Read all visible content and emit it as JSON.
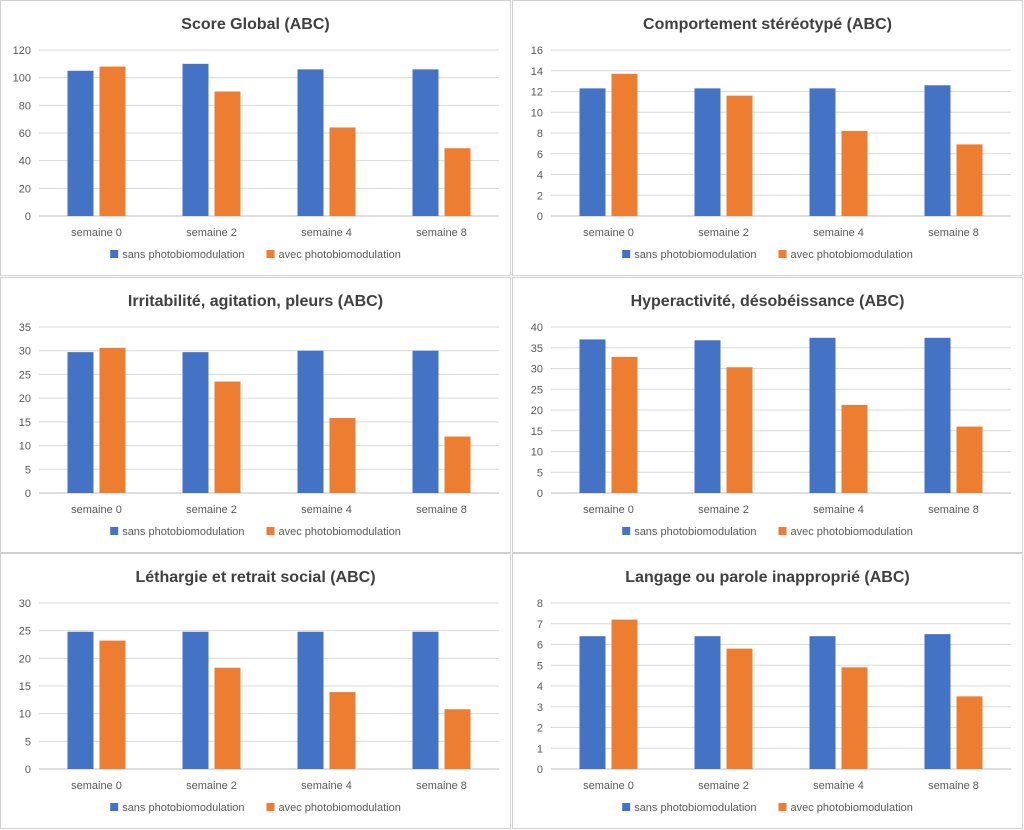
{
  "colors": {
    "series0": "#4472c4",
    "series1": "#ed7d31"
  },
  "chart_data": [
    {
      "type": "bar",
      "title": "Score Global (ABC)",
      "categories": [
        "semaine 0",
        "semaine 2",
        "semaine 4",
        "semaine 8"
      ],
      "ylim": [
        0,
        120
      ],
      "ystep": 20,
      "series": [
        {
          "name": "sans photobiomodulation",
          "values": [
            105,
            110,
            106,
            106
          ]
        },
        {
          "name": "avec photobiomodulation",
          "values": [
            108,
            90,
            64,
            49
          ]
        }
      ]
    },
    {
      "type": "bar",
      "title": "Comportement stéréotypé (ABC)",
      "categories": [
        "semaine 0",
        "semaine 2",
        "semaine 4",
        "semaine 8"
      ],
      "ylim": [
        0,
        16
      ],
      "ystep": 2,
      "series": [
        {
          "name": "sans photobiomodulation",
          "values": [
            12.3,
            12.3,
            12.3,
            12.6
          ]
        },
        {
          "name": "avec photobiomodulation",
          "values": [
            13.7,
            11.6,
            8.2,
            6.9
          ]
        }
      ]
    },
    {
      "type": "bar",
      "title": "Irritabilité, agitation, pleurs (ABC)",
      "categories": [
        "semaine 0",
        "semaine 2",
        "semaine 4",
        "semaine 8"
      ],
      "ylim": [
        0,
        35
      ],
      "ystep": 5,
      "series": [
        {
          "name": "sans photobiomodulation",
          "values": [
            29.7,
            29.7,
            30,
            30
          ]
        },
        {
          "name": "avec photobiomodulation",
          "values": [
            30.6,
            23.5,
            15.8,
            11.9
          ]
        }
      ]
    },
    {
      "type": "bar",
      "title": "Hyperactivité, désobéissance (ABC)",
      "categories": [
        "semaine 0",
        "semaine 2",
        "semaine 4",
        "semaine 8"
      ],
      "ylim": [
        0,
        40
      ],
      "ystep": 5,
      "series": [
        {
          "name": "sans photobiomodulation",
          "values": [
            37,
            36.8,
            37.4,
            37.4
          ]
        },
        {
          "name": "avec photobiomodulation",
          "values": [
            32.8,
            30.3,
            21.2,
            16
          ]
        }
      ]
    },
    {
      "type": "bar",
      "title": "Léthargie et retrait social (ABC)",
      "categories": [
        "semaine 0",
        "semaine 2",
        "semaine 4",
        "semaine 8"
      ],
      "ylim": [
        0,
        30
      ],
      "ystep": 5,
      "series": [
        {
          "name": "sans photobiomodulation",
          "values": [
            24.8,
            24.8,
            24.8,
            24.8
          ]
        },
        {
          "name": "avec photobiomodulation",
          "values": [
            23.2,
            18.3,
            13.9,
            10.8
          ]
        }
      ]
    },
    {
      "type": "bar",
      "title": "Langage ou parole inapproprié (ABC)",
      "categories": [
        "semaine 0",
        "semaine 2",
        "semaine 4",
        "semaine 8"
      ],
      "ylim": [
        0,
        8
      ],
      "ystep": 1,
      "series": [
        {
          "name": "sans photobiomodulation",
          "values": [
            6.4,
            6.4,
            6.4,
            6.5
          ]
        },
        {
          "name": "avec photobiomodulation",
          "values": [
            7.2,
            5.8,
            4.9,
            3.5
          ]
        }
      ]
    }
  ]
}
